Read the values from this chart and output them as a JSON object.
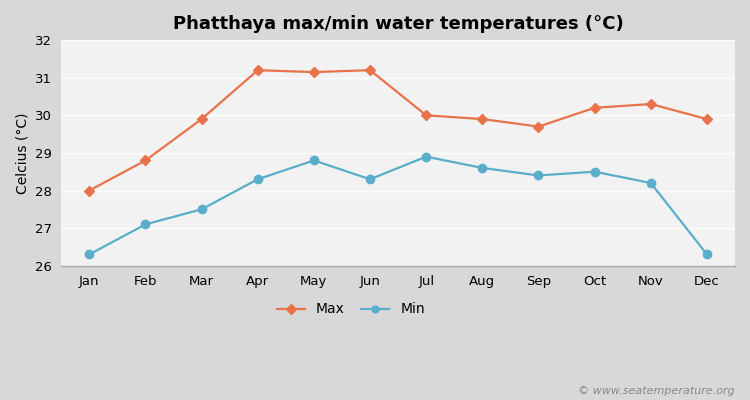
{
  "title": "Phatthaya max/min water temperatures (°C)",
  "ylabel": "Celcius (°C)",
  "months": [
    "Jan",
    "Feb",
    "Mar",
    "Apr",
    "May",
    "Jun",
    "Jul",
    "Aug",
    "Sep",
    "Oct",
    "Nov",
    "Dec"
  ],
  "max_temps": [
    28.0,
    28.8,
    29.9,
    31.2,
    31.15,
    31.2,
    30.0,
    29.9,
    29.7,
    30.2,
    30.3,
    29.9
  ],
  "min_temps": [
    26.3,
    27.1,
    27.5,
    28.3,
    28.8,
    28.3,
    28.9,
    28.6,
    28.4,
    28.5,
    28.2,
    26.3
  ],
  "max_color": "#e8734a",
  "min_color": "#5aaec9",
  "ylim": [
    26,
    32
  ],
  "yticks": [
    26,
    27,
    28,
    29,
    30,
    31,
    32
  ],
  "fig_bg_color": "#d8d8d8",
  "plot_bg_color": "#f2f2f2",
  "grid_color": "#ffffff",
  "watermark": "© www.seatemperature.org",
  "title_fontsize": 13,
  "label_fontsize": 10,
  "tick_fontsize": 9.5,
  "watermark_fontsize": 8
}
